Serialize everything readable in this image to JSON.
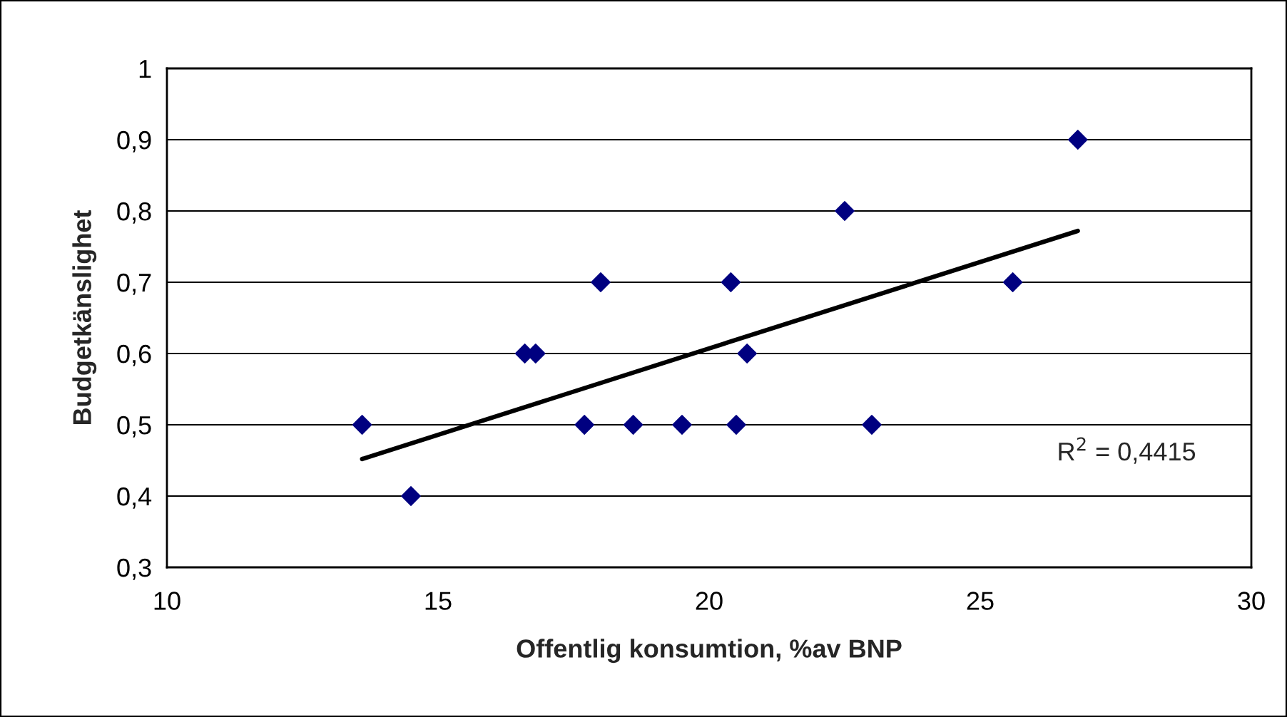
{
  "chart_data": {
    "type": "scatter",
    "xlabel": "Offentlig konsumtion, %av BNP",
    "ylabel": "Budgetkänslighet",
    "series": [
      {
        "color": "#000080",
        "marker": "diamond",
        "x": [
          13.6,
          14.5,
          16.6,
          16.8,
          18.0,
          17.7,
          18.6,
          19.5,
          20.4,
          20.5,
          20.7,
          22.5,
          23.0,
          25.6,
          26.8
        ],
        "values": [
          0.5,
          0.4,
          0.6,
          0.6,
          0.7,
          0.5,
          0.5,
          0.5,
          0.7,
          0.5,
          0.6,
          0.8,
          0.5,
          0.7,
          0.9
        ]
      },
      {
        "type": "line",
        "color": "#000000",
        "x": [
          13.6,
          26.8
        ],
        "values": [
          0.452,
          0.772
        ]
      }
    ],
    "annotations": [
      "R$^{2}$ = 0,4415"
    ],
    "xlim": [
      10,
      30
    ],
    "xticks": [
      10,
      15,
      20,
      25,
      30
    ],
    "ylim": [
      0.3,
      1
    ],
    "yticks": [
      {
        "value": 0.3,
        "label": "0,3"
      },
      {
        "value": 0.4,
        "label": "0,4"
      },
      {
        "value": 0.5,
        "label": "0,5"
      },
      {
        "value": 0.6,
        "label": "0,6"
      },
      {
        "value": 0.7,
        "label": "0,7"
      },
      {
        "value": 0.8,
        "label": "0,8"
      },
      {
        "value": 0.9,
        "label": "0,9"
      },
      {
        "value": 1,
        "label": "1"
      }
    ],
    "grid": "y",
    "legend": false
  }
}
